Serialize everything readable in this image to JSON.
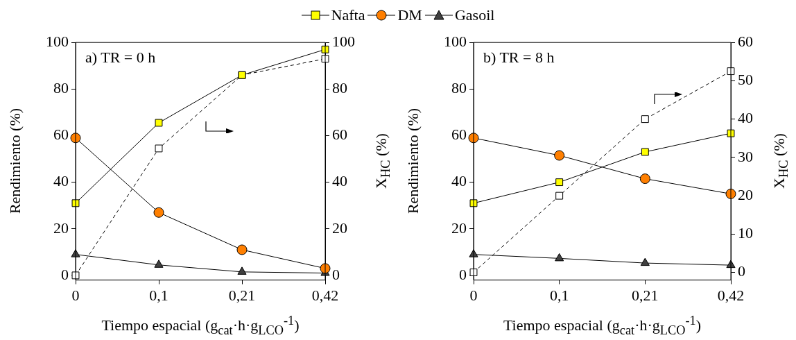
{
  "chart_data": [
    {
      "type": "line",
      "annotations": [
        "a) TR = 0 h"
      ],
      "categories": [
        "0",
        "0,1",
        "0,21",
        "0,42"
      ],
      "xlabel": "Tiempo espacial (g$_{cat}$·h·g$_{LCO}$$^{-1}$)",
      "ylabel": "Rendimiento (%)",
      "y2label": "X$_{HC}$ (%)",
      "ylim": [
        -2,
        100
      ],
      "yticks": [
        0,
        20,
        40,
        60,
        80,
        100
      ],
      "y2lim": [
        -2,
        100
      ],
      "y2ticks": [
        0,
        20,
        40,
        60,
        80,
        100
      ],
      "legend": "top",
      "series": [
        {
          "name": "Nafta",
          "color": "#ffff00",
          "marker": "square",
          "values": [
            31,
            65.5,
            86,
            97
          ]
        },
        {
          "name": "DM",
          "color": "#ff7f00",
          "marker": "circle",
          "values": [
            59,
            27,
            11,
            3
          ]
        },
        {
          "name": "Gasoil",
          "color": "#404040",
          "marker": "triangle",
          "values": [
            9,
            4.5,
            1.5,
            1
          ]
        },
        {
          "color": "#ffffff",
          "marker": "square",
          "line_style": "dashed",
          "axis": "y2",
          "values": [
            0,
            54.5,
            86,
            93
          ]
        }
      ]
    },
    {
      "type": "line",
      "annotations": [
        "b) TR = 8 h"
      ],
      "categories": [
        "0",
        "0,1",
        "0,21",
        "0,42"
      ],
      "xlabel": "Tiempo espacial (g$_{cat}$·h·g$_{LCO}$$^{-1}$)",
      "ylabel": "Rendimiento (%)",
      "y2label": "X$_{HC}$ (%)",
      "ylim": [
        -2,
        100
      ],
      "yticks": [
        0,
        20,
        40,
        60,
        80,
        100
      ],
      "y2lim": [
        -2,
        60
      ],
      "y2ticks": [
        0,
        10,
        20,
        30,
        40,
        50,
        60
      ],
      "series": [
        {
          "color": "#ffff00",
          "marker": "square",
          "values": [
            31,
            40,
            53,
            61
          ]
        },
        {
          "color": "#ff7f00",
          "marker": "circle",
          "values": [
            59,
            51.5,
            41.5,
            35
          ]
        },
        {
          "color": "#404040",
          "marker": "triangle",
          "values": [
            9,
            7.3,
            5.3,
            4.4
          ]
        },
        {
          "color": "#ffffff",
          "marker": "square",
          "line_style": "dashed",
          "axis": "y2",
          "values": [
            0,
            20,
            40,
            52.5
          ]
        }
      ]
    }
  ]
}
